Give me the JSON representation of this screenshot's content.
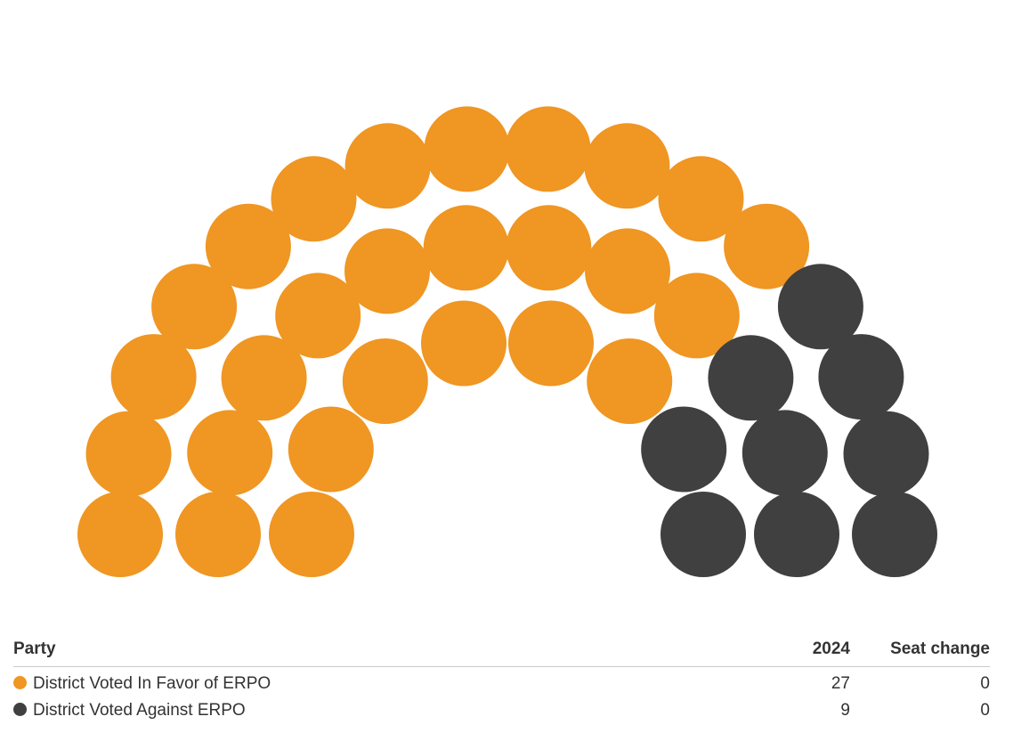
{
  "colors": {
    "favor": "#ef9623",
    "against": "#404040"
  },
  "chart_data": {
    "type": "parliament",
    "total_seats": 36,
    "series": [
      {
        "name": "District Voted In Favor of ERPO",
        "seats": 27,
        "seat_change": 0,
        "color": "#ef9623"
      },
      {
        "name": "District Voted Against ERPO",
        "seats": 9,
        "seat_change": 0,
        "color": "#404040"
      }
    ],
    "rows": [
      {
        "seats": 16
      },
      {
        "seats": 12
      },
      {
        "seats": 8
      }
    ]
  },
  "table": {
    "headers": {
      "party": "Party",
      "year": "2024",
      "change": "Seat change"
    },
    "rows": [
      {
        "name": "District Voted In Favor of ERPO",
        "seats": "27",
        "change": "0"
      },
      {
        "name": "District Voted Against ERPO",
        "seats": "9",
        "change": "0"
      }
    ]
  }
}
